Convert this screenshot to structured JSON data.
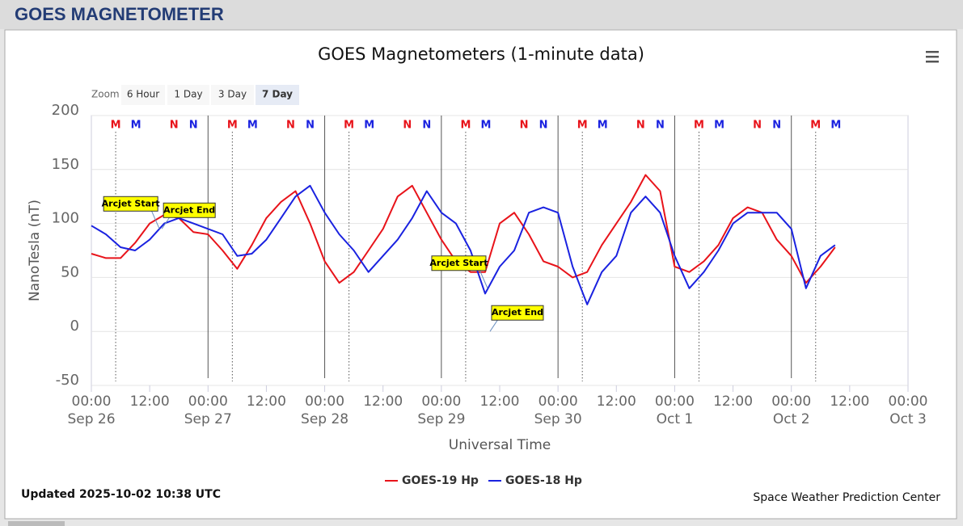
{
  "header": {
    "title": "GOES MAGNETOMETER"
  },
  "zoom": {
    "label": "Zoom",
    "buttons": [
      "6 Hour",
      "1 Day",
      "3 Day",
      "7 Day"
    ],
    "active": 3
  },
  "chart_data": {
    "type": "line",
    "title": "GOES Magnetometers (1-minute data)",
    "y_label": "NanoTesla (nT)",
    "x_label": "Universal Time",
    "xlim": [
      "Sep 26 00:00",
      "Oct 3 00:00"
    ],
    "xticks": [
      {
        "value": "Sep 26 00:00",
        "label": [
          "00:00",
          "Sep 26"
        ]
      },
      {
        "value": "Sep 26 12:00",
        "label": "12:00"
      },
      {
        "value": "Sep 27 00:00",
        "label": [
          "00:00",
          "Sep 27"
        ]
      },
      {
        "value": "Sep 27 12:00",
        "label": "12:00"
      },
      {
        "value": "Sep 28 00:00",
        "label": [
          "00:00",
          "Sep 28"
        ]
      },
      {
        "value": "Sep 28 12:00",
        "label": "12:00"
      },
      {
        "value": "Sep 29 00:00",
        "label": [
          "00:00",
          "Sep 29"
        ]
      },
      {
        "value": "Sep 29 12:00",
        "label": "12:00"
      },
      {
        "value": "Sep 30 00:00",
        "label": [
          "00:00",
          "Sep 30"
        ]
      },
      {
        "value": "Sep 30 12:00",
        "label": "12:00"
      },
      {
        "value": "Oct 1 00:00",
        "label": [
          "00:00",
          "Oct 1"
        ]
      },
      {
        "value": "Oct 1 12:00",
        "label": "12:00"
      },
      {
        "value": "Oct 2 00:00",
        "label": [
          "00:00",
          "Oct 2"
        ]
      },
      {
        "value": "Oct 2 12:00",
        "label": "12:00"
      },
      {
        "value": "Oct 3 00:00",
        "label": [
          "00:00",
          "Oct 3"
        ]
      }
    ],
    "ylim": [
      -50,
      200
    ],
    "yticks": [
      -50,
      0,
      50,
      100,
      150,
      200
    ],
    "grid": true,
    "day_lines": true,
    "x": [
      "Sep 26 00:00",
      "Sep 26 03:00",
      "Sep 26 06:00",
      "Sep 26 09:00",
      "Sep 26 12:00",
      "Sep 26 15:00",
      "Sep 26 18:00",
      "Sep 26 21:00",
      "Sep 27 00:00",
      "Sep 27 03:00",
      "Sep 27 06:00",
      "Sep 27 09:00",
      "Sep 27 12:00",
      "Sep 27 15:00",
      "Sep 27 18:00",
      "Sep 27 21:00",
      "Sep 28 00:00",
      "Sep 28 03:00",
      "Sep 28 06:00",
      "Sep 28 09:00",
      "Sep 28 12:00",
      "Sep 28 15:00",
      "Sep 28 18:00",
      "Sep 28 21:00",
      "Sep 29 00:00",
      "Sep 29 03:00",
      "Sep 29 06:00",
      "Sep 29 09:00",
      "Sep 29 12:00",
      "Sep 29 15:00",
      "Sep 29 18:00",
      "Sep 29 21:00",
      "Sep 30 00:00",
      "Sep 30 03:00",
      "Sep 30 06:00",
      "Sep 30 09:00",
      "Sep 30 12:00",
      "Sep 30 15:00",
      "Sep 30 18:00",
      "Sep 30 21:00",
      "Oct 1 00:00",
      "Oct 1 03:00",
      "Oct 1 06:00",
      "Oct 1 09:00",
      "Oct 1 12:00",
      "Oct 1 15:00",
      "Oct 1 18:00",
      "Oct 1 21:00",
      "Oct 2 00:00",
      "Oct 2 03:00",
      "Oct 2 06:00",
      "Oct 2 09:00"
    ],
    "series": [
      {
        "name": "GOES-19 Hp",
        "color": "#e8131a",
        "values": [
          72,
          68,
          68,
          82,
          100,
          108,
          105,
          92,
          90,
          75,
          58,
          80,
          105,
          120,
          130,
          100,
          65,
          45,
          55,
          75,
          95,
          125,
          135,
          110,
          85,
          65,
          55,
          55,
          100,
          110,
          90,
          65,
          60,
          50,
          55,
          80,
          100,
          120,
          145,
          130,
          60,
          55,
          65,
          80,
          105,
          115,
          110,
          85,
          70,
          45,
          60,
          78
        ]
      },
      {
        "name": "GOES-18 Hp",
        "color": "#1a22e0",
        "values": [
          98,
          90,
          78,
          75,
          85,
          100,
          105,
          100,
          95,
          90,
          70,
          72,
          85,
          105,
          125,
          135,
          110,
          90,
          75,
          55,
          70,
          85,
          105,
          130,
          110,
          100,
          75,
          35,
          60,
          75,
          110,
          115,
          110,
          60,
          25,
          55,
          70,
          110,
          125,
          110,
          70,
          40,
          55,
          75,
          100,
          110,
          110,
          110,
          95,
          40,
          70,
          80
        ]
      }
    ],
    "markers": [
      {
        "label": "M",
        "x": "Sep 26 05:00",
        "color": "#e8131a",
        "dotted": true
      },
      {
        "label": "M",
        "x": "Sep 26 09:10",
        "color": "#1a22e0"
      },
      {
        "label": "N",
        "x": "Sep 26 17:00",
        "color": "#e8131a"
      },
      {
        "label": "N",
        "x": "Sep 26 21:00",
        "color": "#1a22e0"
      },
      {
        "label": "M",
        "x": "Sep 27 05:00",
        "color": "#e8131a",
        "dotted": true
      },
      {
        "label": "M",
        "x": "Sep 27 09:10",
        "color": "#1a22e0"
      },
      {
        "label": "N",
        "x": "Sep 27 17:00",
        "color": "#e8131a"
      },
      {
        "label": "N",
        "x": "Sep 27 21:00",
        "color": "#1a22e0"
      },
      {
        "label": "M",
        "x": "Sep 28 05:00",
        "color": "#e8131a",
        "dotted": true
      },
      {
        "label": "M",
        "x": "Sep 28 09:10",
        "color": "#1a22e0"
      },
      {
        "label": "N",
        "x": "Sep 28 17:00",
        "color": "#e8131a"
      },
      {
        "label": "N",
        "x": "Sep 28 21:00",
        "color": "#1a22e0"
      },
      {
        "label": "M",
        "x": "Sep 29 05:00",
        "color": "#e8131a",
        "dotted": true
      },
      {
        "label": "M",
        "x": "Sep 29 09:10",
        "color": "#1a22e0"
      },
      {
        "label": "N",
        "x": "Sep 29 17:00",
        "color": "#e8131a"
      },
      {
        "label": "N",
        "x": "Sep 29 21:00",
        "color": "#1a22e0"
      },
      {
        "label": "M",
        "x": "Sep 30 05:00",
        "color": "#e8131a",
        "dotted": true
      },
      {
        "label": "M",
        "x": "Sep 30 09:10",
        "color": "#1a22e0"
      },
      {
        "label": "N",
        "x": "Sep 30 17:00",
        "color": "#e8131a"
      },
      {
        "label": "N",
        "x": "Sep 30 21:00",
        "color": "#1a22e0"
      },
      {
        "label": "M",
        "x": "Oct 1 05:00",
        "color": "#e8131a",
        "dotted": true
      },
      {
        "label": "M",
        "x": "Oct 1 09:10",
        "color": "#1a22e0"
      },
      {
        "label": "N",
        "x": "Oct 1 17:00",
        "color": "#e8131a"
      },
      {
        "label": "N",
        "x": "Oct 1 21:00",
        "color": "#1a22e0"
      },
      {
        "label": "M",
        "x": "Oct 2 05:00",
        "color": "#e8131a",
        "dotted": true
      },
      {
        "label": "M",
        "x": "Oct 2 09:10",
        "color": "#1a22e0"
      }
    ],
    "annotations": [
      {
        "label": "Arcjet Start",
        "x": "Sep 26 14:00",
        "y": 95,
        "side": "left"
      },
      {
        "label": "Arcjet End",
        "x": "Sep 26 14:30",
        "y": 95,
        "side": "right"
      },
      {
        "label": "Arcjet Start",
        "x": "Sep 29 09:30",
        "y": 40,
        "side": "left"
      },
      {
        "label": "Arcjet End",
        "x": "Sep 29 10:00",
        "y": 0,
        "side": "right"
      }
    ]
  },
  "footer": {
    "updated": "Updated 2025-10-02 10:38 UTC",
    "credit": "Space Weather Prediction Center"
  }
}
